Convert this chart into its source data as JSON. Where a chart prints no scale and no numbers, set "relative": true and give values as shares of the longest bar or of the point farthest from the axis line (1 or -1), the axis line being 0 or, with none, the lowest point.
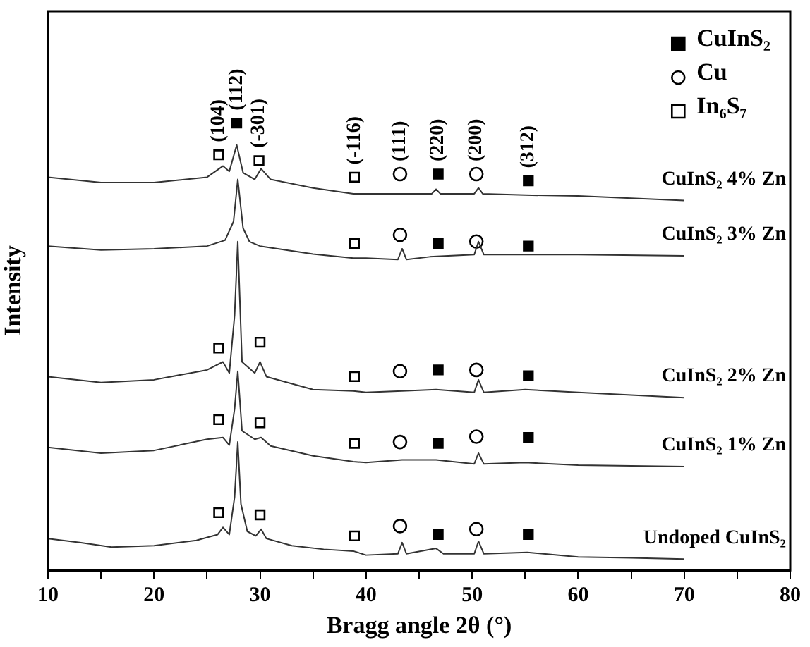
{
  "chart_data": {
    "type": "line",
    "xlabel": "Bragg angle 2θ (°)",
    "ylabel": "Intensity",
    "relative": true,
    "grid": false,
    "legend": "top right",
    "line_style": "solid",
    "xlim": [
      10,
      80
    ],
    "xticks": [
      10,
      {
        "value": 15,
        "label": null
      },
      20,
      {
        "value": 25,
        "label": null
      },
      30,
      {
        "value": 35,
        "label": null
      },
      40,
      {
        "value": 45,
        "label": null
      },
      50,
      {
        "value": 55,
        "label": null
      },
      60,
      {
        "value": 65,
        "label": null
      },
      70,
      {
        "value": 75,
        "label": null
      },
      80
    ],
    "series": [
      {
        "name": "Undoped CuInS₂",
        "color": "#333333",
        "x": [
          10,
          13,
          16,
          20,
          24,
          26,
          26.5,
          27.1,
          27.6,
          27.9,
          28.2,
          28.8,
          29.6,
          30.1,
          30.6,
          33,
          36,
          38.8,
          40,
          43,
          43.4,
          43.8,
          46.6,
          47.3,
          50.2,
          50.6,
          51.1,
          55.2,
          60,
          65,
          70
        ],
        "values": [
          0.071,
          0.062,
          0.052,
          0.055,
          0.067,
          0.08,
          0.096,
          0.08,
          0.164,
          0.287,
          0.148,
          0.087,
          0.077,
          0.092,
          0.071,
          0.055,
          0.047,
          0.043,
          0.034,
          0.037,
          0.062,
          0.037,
          0.049,
          0.037,
          0.037,
          0.065,
          0.037,
          0.04,
          0.03,
          0.028,
          0.025
        ]
      },
      {
        "name": "CuInS₂ 1% Zn",
        "color": "#333333",
        "x": [
          10,
          15,
          20,
          25,
          26.5,
          27.1,
          27.6,
          27.9,
          28.3,
          29.5,
          30.1,
          31,
          35,
          38.8,
          40,
          43.4,
          46.6,
          50.2,
          50.6,
          51.1,
          55,
          60,
          70
        ],
        "values": [
          0.275,
          0.262,
          0.268,
          0.293,
          0.297,
          0.28,
          0.361,
          0.445,
          0.312,
          0.293,
          0.297,
          0.278,
          0.256,
          0.243,
          0.241,
          0.247,
          0.247,
          0.238,
          0.262,
          0.238,
          0.241,
          0.235,
          0.232
        ]
      },
      {
        "name": "CuInS₂ 2% Zn",
        "color": "#333333",
        "x": [
          10,
          15,
          20,
          25,
          26.5,
          27.1,
          27.6,
          27.9,
          28.3,
          29.5,
          30,
          30.6,
          35,
          38.8,
          40,
          43.4,
          46.6,
          50.2,
          50.6,
          51.1,
          55,
          57.5,
          60,
          70
        ],
        "values": [
          0.433,
          0.42,
          0.426,
          0.448,
          0.466,
          0.441,
          0.57,
          0.735,
          0.466,
          0.441,
          0.466,
          0.433,
          0.404,
          0.401,
          0.398,
          0.401,
          0.404,
          0.398,
          0.426,
          0.398,
          0.404,
          0.401,
          0.398,
          0.386
        ]
      },
      {
        "name": "CuInS₂ 3% Zn",
        "color": "#333333",
        "x": [
          10,
          15,
          20,
          25,
          26.7,
          27.5,
          27.9,
          28.4,
          29,
          30,
          35,
          38.8,
          40,
          43,
          43.4,
          43.8,
          46,
          50.2,
          50.6,
          51.1,
          55,
          60,
          70
        ],
        "values": [
          0.725,
          0.716,
          0.719,
          0.725,
          0.738,
          0.78,
          0.874,
          0.765,
          0.735,
          0.725,
          0.707,
          0.698,
          0.698,
          0.695,
          0.719,
          0.695,
          0.701,
          0.706,
          0.735,
          0.706,
          0.706,
          0.706,
          0.703
        ]
      },
      {
        "name": "CuInS₂ 4% Zn",
        "color": "#333333",
        "x": [
          10,
          15,
          20,
          25,
          26.5,
          27.1,
          27.8,
          28.4,
          29.5,
          30.1,
          31,
          35,
          38.8,
          40,
          46.2,
          46.6,
          47,
          50.2,
          50.6,
          51,
          55,
          60,
          70
        ],
        "values": [
          0.879,
          0.867,
          0.867,
          0.879,
          0.904,
          0.892,
          0.951,
          0.889,
          0.874,
          0.898,
          0.874,
          0.855,
          0.842,
          0.842,
          0.842,
          0.852,
          0.842,
          0.842,
          0.855,
          0.842,
          0.839,
          0.837,
          0.827
        ]
      },
      {
        "type": "scatter",
        "name": "CuInS₂",
        "color": "#000000",
        "marker": "square",
        "x": [
          27.8,
          46.8,
          55.3,
          46.8,
          55.3,
          46.8,
          55.3,
          46.8,
          55.3,
          46.8,
          55.3
        ],
        "values": [
          1,
          0.886,
          0.871,
          0.731,
          0.725,
          0.448,
          0.435,
          0.284,
          0.297,
          0.08,
          0.08
        ]
      },
      {
        "type": "scatter",
        "name": "Cu",
        "color": "#ffffff",
        "marker": "circle",
        "x": [
          43.2,
          50.4,
          43.2,
          50.4,
          43.2,
          50.4,
          43.2,
          50.4,
          43.2,
          50.4
        ],
        "values": [
          0.886,
          0.886,
          0.75,
          0.735,
          0.445,
          0.448,
          0.287,
          0.299,
          0.099,
          0.092
        ]
      },
      {
        "type": "scatter",
        "name": "In₆S₇",
        "color": "#ffffff",
        "marker": "square",
        "x": [
          26.1,
          29.9,
          38.9,
          38.9,
          26.1,
          30,
          38.9,
          26.1,
          30,
          38.9,
          26.1,
          30,
          38.9
        ],
        "values": [
          0.929,
          0.916,
          0.879,
          0.731,
          0.497,
          0.51,
          0.433,
          0.337,
          0.33,
          0.284,
          0.129,
          0.124,
          0.077
        ]
      }
    ],
    "annotations": [
      {
        "text": "(104)",
        "x": 26.1,
        "y": 0.929
      },
      {
        "text": "(112)",
        "x": 27.8,
        "y": 1
      },
      {
        "text": "(-301)",
        "x": 29.9,
        "y": 0.916
      },
      {
        "text": "(-116)",
        "x": 38.9,
        "y": 0.879
      },
      {
        "text": "(111)",
        "x": 43.2,
        "y": 0.886
      },
      {
        "text": "(220)",
        "x": 46.8,
        "y": 0.886
      },
      {
        "text": "(200)",
        "x": 50.4,
        "y": 0.886
      },
      {
        "text": "(312)",
        "x": 55.3,
        "y": 0.871
      }
    ]
  }
}
